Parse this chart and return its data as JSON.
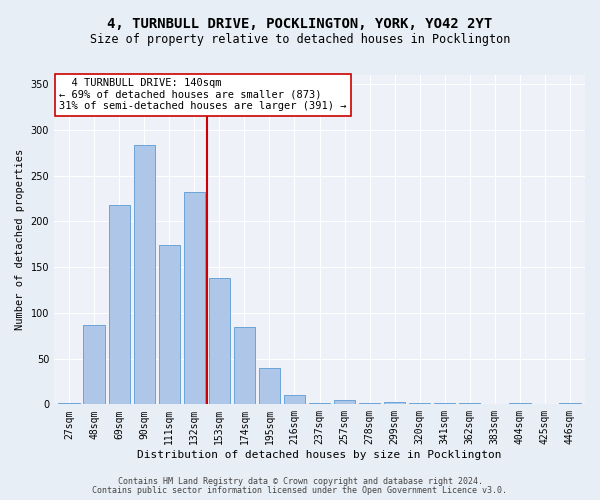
{
  "title": "4, TURNBULL DRIVE, POCKLINGTON, YORK, YO42 2YT",
  "subtitle": "Size of property relative to detached houses in Pocklington",
  "xlabel": "Distribution of detached houses by size in Pocklington",
  "ylabel": "Number of detached properties",
  "categories": [
    "27sqm",
    "48sqm",
    "69sqm",
    "90sqm",
    "111sqm",
    "132sqm",
    "153sqm",
    "174sqm",
    "195sqm",
    "216sqm",
    "237sqm",
    "257sqm",
    "278sqm",
    "299sqm",
    "320sqm",
    "341sqm",
    "362sqm",
    "383sqm",
    "404sqm",
    "425sqm",
    "446sqm"
  ],
  "bar_heights": [
    2,
    87,
    218,
    284,
    174,
    232,
    138,
    85,
    40,
    10,
    2,
    5,
    2,
    3,
    2,
    2,
    2,
    0,
    2,
    0,
    2
  ],
  "bar_color": "#aec6e8",
  "bar_edge_color": "#5b9bd5",
  "vline_color": "#cc0000",
  "annotation_lines": [
    "  4 TURNBULL DRIVE: 140sqm  ",
    "← 69% of detached houses are smaller (873)",
    "31% of semi-detached houses are larger (391) →"
  ],
  "annotation_box_color": "#ffffff",
  "annotation_box_edge": "#cc0000",
  "ylim": [
    0,
    360
  ],
  "yticks": [
    0,
    50,
    100,
    150,
    200,
    250,
    300,
    350
  ],
  "footer1": "Contains HM Land Registry data © Crown copyright and database right 2024.",
  "footer2": "Contains public sector information licensed under the Open Government Licence v3.0.",
  "bg_color": "#e8eef5",
  "plot_bg_color": "#eef2f8",
  "title_fontsize": 10,
  "subtitle_fontsize": 8.5,
  "tick_fontsize": 7,
  "ylabel_fontsize": 7.5,
  "xlabel_fontsize": 8,
  "footer_fontsize": 6,
  "annot_fontsize": 7.5
}
